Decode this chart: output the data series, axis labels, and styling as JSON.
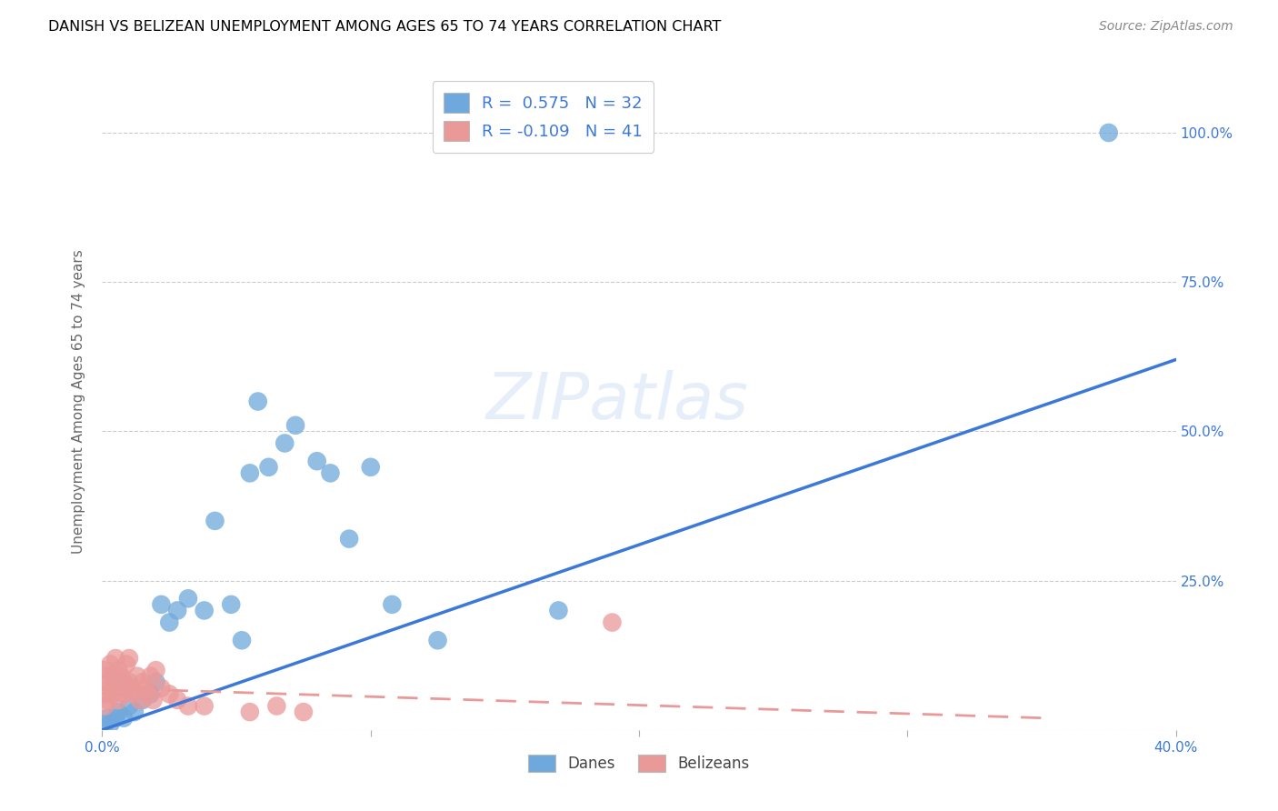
{
  "title": "DANISH VS BELIZEAN UNEMPLOYMENT AMONG AGES 65 TO 74 YEARS CORRELATION CHART",
  "source": "Source: ZipAtlas.com",
  "ylabel": "Unemployment Among Ages 65 to 74 years",
  "xlabel": "",
  "xlim": [
    0.0,
    0.4
  ],
  "ylim": [
    0.0,
    1.1
  ],
  "xticks": [
    0.0,
    0.1,
    0.2,
    0.3,
    0.4
  ],
  "yticks": [
    0.0,
    0.25,
    0.5,
    0.75,
    1.0
  ],
  "ytick_labels": [
    "",
    "25.0%",
    "50.0%",
    "75.0%",
    "100.0%"
  ],
  "xtick_labels": [
    "0.0%",
    "",
    "",
    "",
    "40.0%"
  ],
  "dane_R": 0.575,
  "dane_N": 32,
  "belizean_R": -0.109,
  "belizean_N": 41,
  "dane_color": "#6fa8dc",
  "belizean_color": "#ea9999",
  "dane_line_color": "#3c78d8",
  "belizean_line_color": "#ea9999",
  "background_color": "#ffffff",
  "grid_color": "#cccccc",
  "title_color": "#000000",
  "legend_label_dane": "Danes",
  "legend_label_belizean": "Belizeans",
  "danes_x": [
    0.001,
    0.002,
    0.003,
    0.005,
    0.006,
    0.008,
    0.01,
    0.012,
    0.015,
    0.018,
    0.02,
    0.022,
    0.025,
    0.028,
    0.032,
    0.038,
    0.042,
    0.048,
    0.052,
    0.055,
    0.058,
    0.062,
    0.068,
    0.072,
    0.08,
    0.085,
    0.092,
    0.1,
    0.108,
    0.125,
    0.17,
    0.375
  ],
  "danes_y": [
    0.01,
    0.02,
    0.01,
    0.02,
    0.03,
    0.02,
    0.04,
    0.03,
    0.05,
    0.06,
    0.08,
    0.21,
    0.18,
    0.2,
    0.22,
    0.2,
    0.35,
    0.21,
    0.15,
    0.43,
    0.55,
    0.44,
    0.48,
    0.51,
    0.45,
    0.43,
    0.32,
    0.44,
    0.21,
    0.15,
    0.2,
    1.0
  ],
  "belizeans_x": [
    0.001,
    0.001,
    0.001,
    0.001,
    0.002,
    0.002,
    0.003,
    0.003,
    0.004,
    0.004,
    0.005,
    0.005,
    0.006,
    0.006,
    0.007,
    0.007,
    0.008,
    0.008,
    0.009,
    0.009,
    0.01,
    0.01,
    0.011,
    0.012,
    0.013,
    0.014,
    0.015,
    0.016,
    0.017,
    0.018,
    0.019,
    0.02,
    0.022,
    0.025,
    0.028,
    0.032,
    0.038,
    0.055,
    0.065,
    0.075,
    0.19
  ],
  "belizeans_y": [
    0.04,
    0.06,
    0.08,
    0.1,
    0.05,
    0.09,
    0.07,
    0.11,
    0.06,
    0.09,
    0.08,
    0.12,
    0.05,
    0.1,
    0.07,
    0.09,
    0.06,
    0.08,
    0.07,
    0.11,
    0.08,
    0.12,
    0.07,
    0.06,
    0.09,
    0.05,
    0.08,
    0.07,
    0.06,
    0.09,
    0.05,
    0.1,
    0.07,
    0.06,
    0.05,
    0.04,
    0.04,
    0.03,
    0.04,
    0.03,
    0.18
  ],
  "dane_line_x": [
    0.0,
    0.4
  ],
  "dane_line_y": [
    0.0,
    0.62
  ],
  "beli_line_x": [
    0.0,
    0.35
  ],
  "beli_line_y": [
    0.07,
    0.02
  ]
}
